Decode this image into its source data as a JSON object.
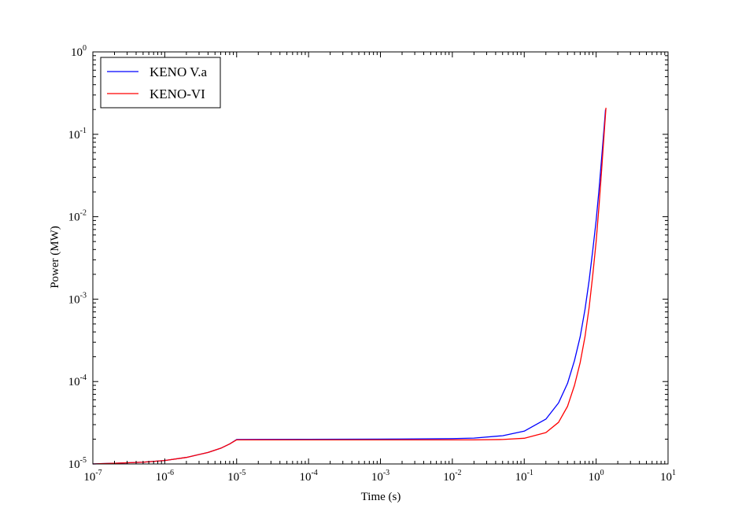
{
  "chart_data": {
    "type": "line",
    "title": "",
    "xlabel": "Time (s)",
    "ylabel": "Power (MW)",
    "xscale": "log",
    "yscale": "log",
    "xlim": [
      1e-07,
      10
    ],
    "ylim": [
      1e-05,
      1
    ],
    "x_tick_labels": [
      {
        "value": 1e-07,
        "base": "10",
        "exp": "-7"
      },
      {
        "value": 1e-06,
        "base": "10",
        "exp": "-6"
      },
      {
        "value": 1e-05,
        "base": "10",
        "exp": "-5"
      },
      {
        "value": 0.0001,
        "base": "10",
        "exp": "-4"
      },
      {
        "value": 0.001,
        "base": "10",
        "exp": "-3"
      },
      {
        "value": 0.01,
        "base": "10",
        "exp": "-2"
      },
      {
        "value": 0.1,
        "base": "10",
        "exp": "-1"
      },
      {
        "value": 1,
        "base": "10",
        "exp": "0"
      },
      {
        "value": 10,
        "base": "10",
        "exp": "1"
      }
    ],
    "y_tick_labels": [
      {
        "value": 1e-05,
        "base": "10",
        "exp": "-5"
      },
      {
        "value": 0.0001,
        "base": "10",
        "exp": "-4"
      },
      {
        "value": 0.001,
        "base": "10",
        "exp": "-3"
      },
      {
        "value": 0.01,
        "base": "10",
        "exp": "-2"
      },
      {
        "value": 0.1,
        "base": "10",
        "exp": "-1"
      },
      {
        "value": 1,
        "base": "10",
        "exp": "0"
      }
    ],
    "grid": false,
    "legend_position": "top-left",
    "series": [
      {
        "name": "KENO V.a",
        "color": "#0000ff",
        "points": [
          [
            1e-07,
            1e-05
          ],
          [
            2e-07,
            1.02e-05
          ],
          [
            5e-07,
            1.05e-05
          ],
          [
            1e-06,
            1.1e-05
          ],
          [
            2e-06,
            1.2e-05
          ],
          [
            4e-06,
            1.38e-05
          ],
          [
            6e-06,
            1.55e-05
          ],
          [
            8e-06,
            1.75e-05
          ],
          [
            1e-05,
            1.98e-05
          ],
          [
            0.0001,
            1.99e-05
          ],
          [
            0.001,
            2e-05
          ],
          [
            0.01,
            2.03e-05
          ],
          [
            0.02,
            2.06e-05
          ],
          [
            0.05,
            2.2e-05
          ],
          [
            0.1,
            2.5e-05
          ],
          [
            0.2,
            3.5e-05
          ],
          [
            0.3,
            5.5e-05
          ],
          [
            0.4,
            9.5e-05
          ],
          [
            0.5,
            0.00018
          ],
          [
            0.6,
            0.00035
          ],
          [
            0.7,
            0.00075
          ],
          [
            0.8,
            0.0017
          ],
          [
            0.9,
            0.004
          ],
          [
            1.0,
            0.009
          ],
          [
            1.1,
            0.022
          ],
          [
            1.2,
            0.055
          ],
          [
            1.3,
            0.13
          ],
          [
            1.35,
            0.2
          ]
        ]
      },
      {
        "name": "KENO-VI",
        "color": "#ff0000",
        "points": [
          [
            1e-07,
            1e-05
          ],
          [
            2e-07,
            1.02e-05
          ],
          [
            5e-07,
            1.05e-05
          ],
          [
            1e-06,
            1.1e-05
          ],
          [
            2e-06,
            1.2e-05
          ],
          [
            4e-06,
            1.38e-05
          ],
          [
            6e-06,
            1.55e-05
          ],
          [
            8e-06,
            1.75e-05
          ],
          [
            1e-05,
            1.96e-05
          ],
          [
            0.0001,
            1.96e-05
          ],
          [
            0.001,
            1.96e-05
          ],
          [
            0.01,
            1.96e-05
          ],
          [
            0.02,
            1.96e-05
          ],
          [
            0.05,
            1.98e-05
          ],
          [
            0.1,
            2.05e-05
          ],
          [
            0.2,
            2.4e-05
          ],
          [
            0.3,
            3.2e-05
          ],
          [
            0.4,
            5e-05
          ],
          [
            0.5,
            9e-05
          ],
          [
            0.6,
            0.00017
          ],
          [
            0.7,
            0.00035
          ],
          [
            0.8,
            0.0008
          ],
          [
            0.9,
            0.002
          ],
          [
            1.0,
            0.005
          ],
          [
            1.1,
            0.014
          ],
          [
            1.2,
            0.04
          ],
          [
            1.3,
            0.11
          ],
          [
            1.37,
            0.21
          ]
        ]
      }
    ]
  }
}
